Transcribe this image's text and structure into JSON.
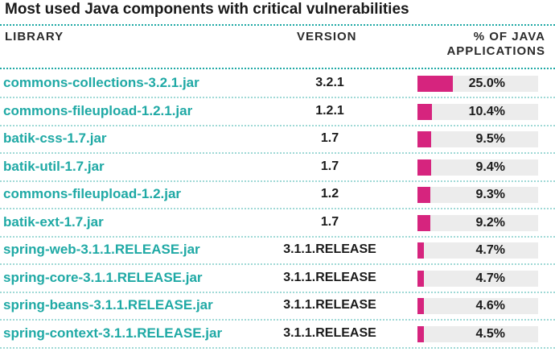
{
  "title": "Most used Java components with critical vulnerabilities",
  "columns": {
    "library": "LIBRARY",
    "version": "VERSION",
    "percent_line1": "% OF JAVA",
    "percent_line2": "APPLICATIONS"
  },
  "colors": {
    "library_text": "#1fa9a5",
    "bar_fill": "#d6247e",
    "bar_track": "#ececec",
    "rule": "#1fa9a5"
  },
  "chart_data": {
    "type": "bar",
    "title": "Most used Java components with critical vulnerabilities",
    "xlabel": "% OF JAVA APPLICATIONS",
    "ylabel": "LIBRARY",
    "xlim": [
      0,
      100
    ],
    "categories": [
      "commons-collections-3.2.1.jar",
      "commons-fileupload-1.2.1.jar",
      "batik-css-1.7.jar",
      "batik-util-1.7.jar",
      "commons-fileupload-1.2.jar",
      "batik-ext-1.7.jar",
      "spring-web-3.1.1.RELEASE.jar",
      "spring-core-3.1.1.RELEASE.jar",
      "spring-beans-3.1.1.RELEASE.jar",
      "spring-context-3.1.1.RELEASE.jar"
    ],
    "versions": [
      "3.2.1",
      "1.2.1",
      "1.7",
      "1.7",
      "1.2",
      "1.7",
      "3.1.1.RELEASE",
      "3.1.1.RELEASE",
      "3.1.1.RELEASE",
      "3.1.1.RELEASE"
    ],
    "values": [
      25.0,
      10.4,
      9.5,
      9.4,
      9.3,
      9.2,
      4.7,
      4.7,
      4.6,
      4.5
    ],
    "value_labels": [
      "25.0%",
      "10.4%",
      "9.5%",
      "9.4%",
      "9.3%",
      "9.2%",
      "4.7%",
      "4.7%",
      "4.6%",
      "4.5%"
    ]
  }
}
